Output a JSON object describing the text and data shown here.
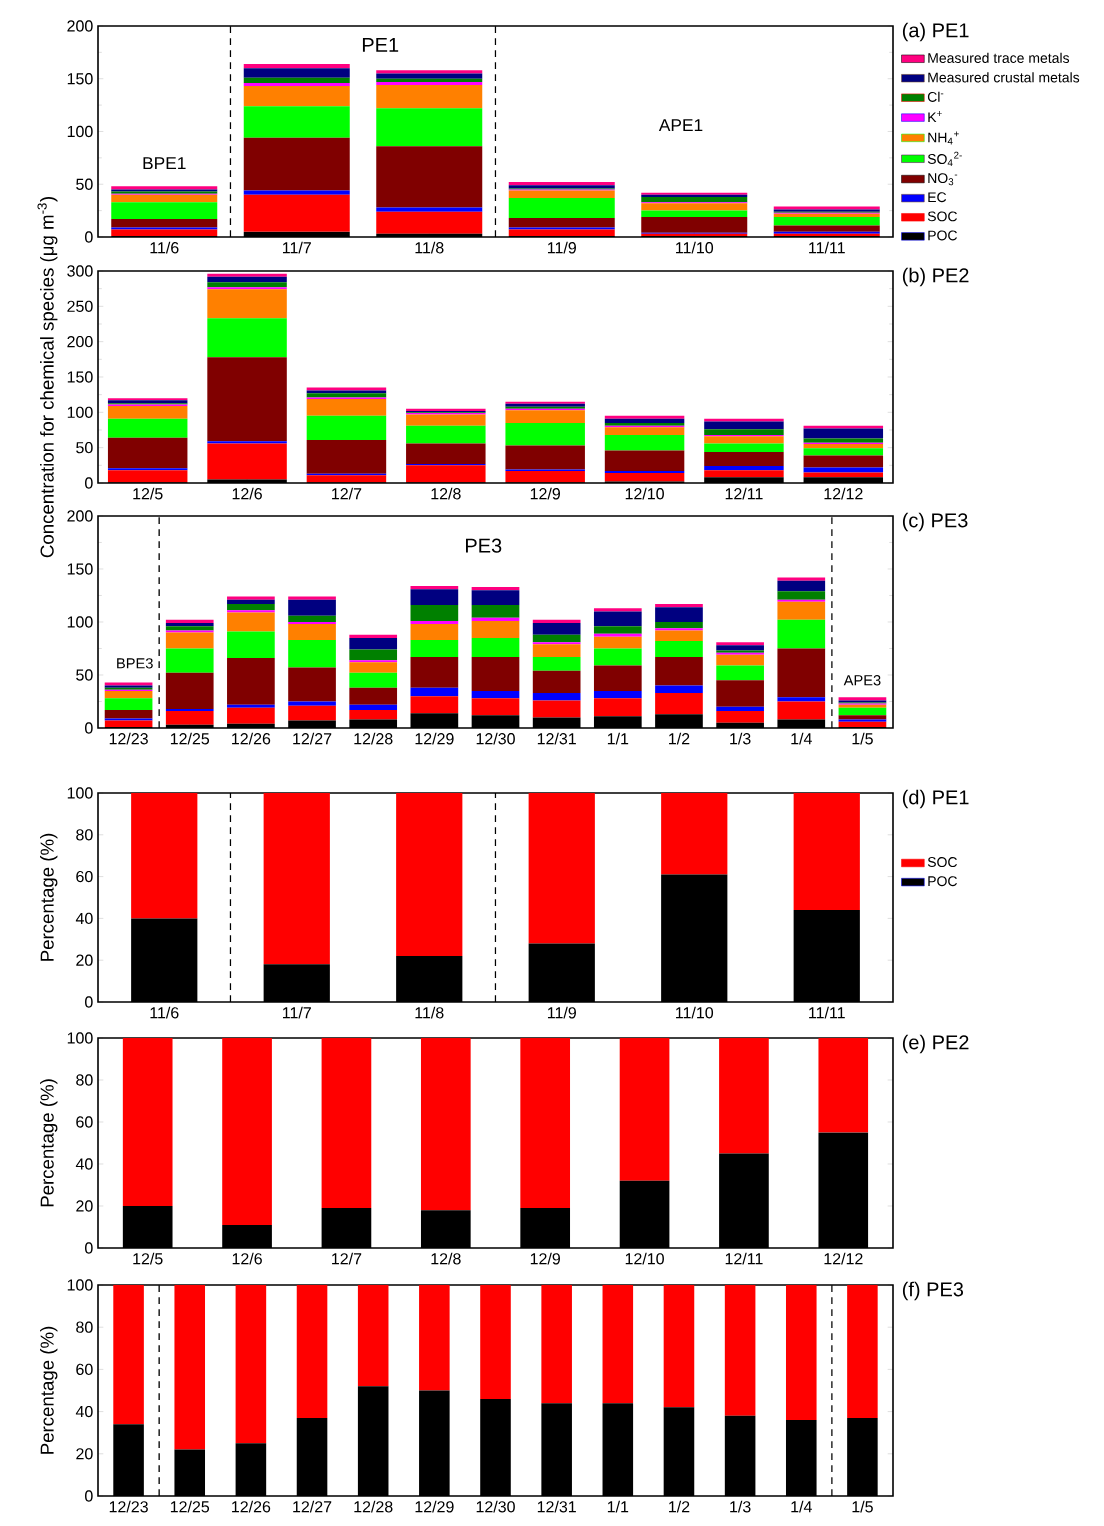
{
  "chart_data": [
    {
      "type": "bar",
      "title": "(a) PE1",
      "stacked": true,
      "legend": "right",
      "categories": [
        "11/6",
        "11/7",
        "11/8",
        "11/9",
        "11/10",
        "11/11"
      ],
      "ylim": [
        0,
        200
      ],
      "yticks": [
        0,
        50,
        100,
        150,
        200
      ],
      "annotations": [
        "BPE1",
        "PE1",
        "APE1"
      ],
      "series": [
        {
          "name": "POC",
          "color": "#000000",
          "values": [
            1,
            5,
            3,
            1,
            1,
            1
          ]
        },
        {
          "name": "SOC",
          "color": "#ff0000",
          "values": [
            6,
            35,
            21,
            6,
            2,
            2
          ]
        },
        {
          "name": "EC",
          "color": "#0000ff",
          "values": [
            2,
            4,
            4,
            2,
            1,
            2
          ]
        },
        {
          "name": "NO$_{3}$$^{-}$",
          "color": "#800000",
          "values": [
            8,
            50,
            58,
            9,
            15,
            6
          ]
        },
        {
          "name": "SO$_{4}$$^{2-}$",
          "color": "#00ff00",
          "values": [
            16,
            30,
            36,
            19,
            6,
            8
          ]
        },
        {
          "name": "NH$_{4}$$^{+}$",
          "color": "#ff8000",
          "values": [
            7,
            19,
            22,
            7,
            7,
            3
          ]
        },
        {
          "name": "K$^{+}$",
          "color": "#ff00ff",
          "values": [
            1,
            3,
            3,
            1,
            1,
            1
          ]
        },
        {
          "name": "Cl$^{-}$",
          "color": "#008000",
          "values": [
            2,
            5,
            3,
            1,
            5,
            1
          ]
        },
        {
          "name": "Measured crustal metals",
          "color": "#000080",
          "values": [
            2,
            9,
            5,
            3,
            2,
            2
          ]
        },
        {
          "name": "Measured trace metals",
          "color": "#ff0080",
          "values": [
            3,
            4,
            3,
            3,
            2,
            3
          ]
        }
      ]
    },
    {
      "type": "bar",
      "title": "(b) PE2",
      "stacked": true,
      "ylabel": "Concentration for chemical species  (μg m$^{-3}$)",
      "categories": [
        "12/5",
        "12/6",
        "12/7",
        "12/8",
        "12/9",
        "12/10",
        "12/11",
        "12/12"
      ],
      "ylim": [
        0,
        300
      ],
      "yticks": [
        0,
        50,
        100,
        150,
        200,
        250,
        300
      ],
      "series": [
        {
          "color": "#000000",
          "values": [
            1,
            5,
            1,
            1,
            1,
            2,
            8,
            8
          ]
        },
        {
          "color": "#ff0000",
          "values": [
            17,
            51,
            10,
            24,
            16,
            12,
            10,
            7
          ]
        },
        {
          "color": "#0000ff",
          "values": [
            3,
            3,
            2,
            2,
            2,
            3,
            6,
            7
          ]
        },
        {
          "color": "#800000",
          "values": [
            43,
            119,
            48,
            29,
            34,
            29,
            20,
            17
          ]
        },
        {
          "color": "#00ff00",
          "values": [
            27,
            55,
            34,
            25,
            32,
            22,
            12,
            10
          ]
        },
        {
          "color": "#ff8000",
          "values": [
            18,
            41,
            24,
            16,
            18,
            11,
            10,
            6
          ]
        },
        {
          "color": "#ff00ff",
          "values": [
            2,
            3,
            2,
            2,
            2,
            2,
            2,
            2
          ]
        },
        {
          "color": "#008000",
          "values": [
            2,
            7,
            6,
            1,
            3,
            4,
            8,
            6
          ]
        },
        {
          "color": "#000080",
          "values": [
            4,
            8,
            4,
            2,
            4,
            6,
            11,
            14
          ]
        },
        {
          "color": "#ff0080",
          "values": [
            3,
            4,
            4,
            3,
            3,
            4,
            4,
            4
          ]
        }
      ]
    },
    {
      "type": "bar",
      "title": "(c) PE3",
      "stacked": true,
      "categories": [
        "12/23",
        "12/25",
        "12/26",
        "12/27",
        "12/28",
        "12/29",
        "12/30",
        "12/31",
        "1/1",
        "1/2",
        "1/3",
        "1/4",
        "1/5"
      ],
      "ylim": [
        0,
        200
      ],
      "yticks": [
        0,
        50,
        100,
        150,
        200
      ],
      "annotations": [
        "BPE3",
        "PE3",
        "APE3"
      ],
      "series": [
        {
          "color": "#000000",
          "values": [
            1,
            3,
            4,
            7,
            8,
            14,
            12,
            10,
            11,
            13,
            5,
            8,
            1
          ]
        },
        {
          "color": "#ff0000",
          "values": [
            6,
            13,
            15,
            14,
            9,
            16,
            16,
            16,
            17,
            20,
            11,
            17,
            5
          ]
        },
        {
          "color": "#0000ff",
          "values": [
            2,
            2,
            3,
            4,
            5,
            8,
            7,
            7,
            7,
            7,
            4,
            4,
            2
          ]
        },
        {
          "color": "#800000",
          "values": [
            8,
            34,
            44,
            32,
            16,
            29,
            32,
            21,
            24,
            27,
            25,
            46,
            4
          ]
        },
        {
          "color": "#00ff00",
          "values": [
            11,
            23,
            25,
            26,
            14,
            16,
            18,
            13,
            16,
            15,
            14,
            27,
            7
          ]
        },
        {
          "color": "#ff8000",
          "values": [
            7,
            15,
            18,
            15,
            10,
            15,
            16,
            12,
            11,
            10,
            10,
            17,
            3
          ]
        },
        {
          "color": "#ff00ff",
          "values": [
            1,
            2,
            2,
            2,
            2,
            3,
            3,
            2,
            3,
            2,
            2,
            2,
            1
          ]
        },
        {
          "color": "#008000",
          "values": [
            2,
            4,
            6,
            6,
            10,
            15,
            12,
            7,
            7,
            6,
            2,
            8,
            1
          ]
        },
        {
          "color": "#000080",
          "values": [
            2,
            3,
            4,
            15,
            11,
            15,
            14,
            11,
            14,
            14,
            5,
            10,
            2
          ]
        },
        {
          "color": "#ff0080",
          "values": [
            3,
            3,
            3,
            3,
            3,
            3,
            3,
            3,
            3,
            3,
            3,
            3,
            3
          ]
        }
      ]
    },
    {
      "type": "bar",
      "title": "(d) PE1",
      "stacked": true,
      "legend": "right",
      "ylabel": "Percentage (%)",
      "categories": [
        "11/6",
        "11/7",
        "11/8",
        "11/9",
        "11/10",
        "11/11"
      ],
      "ylim": [
        0,
        100
      ],
      "yticks": [
        0,
        20,
        40,
        60,
        80,
        100
      ],
      "series": [
        {
          "name": "POC",
          "color": "#000000",
          "values": [
            40,
            18,
            22,
            28,
            61,
            44
          ]
        },
        {
          "name": "SOC",
          "color": "#ff0000",
          "values": [
            60,
            82,
            78,
            72,
            39,
            56
          ]
        }
      ]
    },
    {
      "type": "bar",
      "title": "(e) PE2",
      "stacked": true,
      "ylabel": "Percentage (%)",
      "categories": [
        "12/5",
        "12/6",
        "12/7",
        "12/8",
        "12/9",
        "12/10",
        "12/11",
        "12/12"
      ],
      "ylim": [
        0,
        100
      ],
      "yticks": [
        0,
        20,
        40,
        60,
        80,
        100
      ],
      "series": [
        {
          "color": "#000000",
          "values": [
            20,
            11,
            19,
            18,
            19,
            32,
            45,
            55
          ]
        },
        {
          "color": "#ff0000",
          "values": [
            80,
            89,
            81,
            82,
            81,
            68,
            55,
            45
          ]
        }
      ]
    },
    {
      "type": "bar",
      "title": "(f) PE3",
      "stacked": true,
      "ylabel": "Percentage (%)",
      "categories": [
        "12/23",
        "12/25",
        "12/26",
        "12/27",
        "12/28",
        "12/29",
        "12/30",
        "12/31",
        "1/1",
        "1/2",
        "1/3",
        "1/4",
        "1/5"
      ],
      "ylim": [
        0,
        100
      ],
      "yticks": [
        0,
        20,
        40,
        60,
        80,
        100
      ],
      "series": [
        {
          "color": "#000000",
          "values": [
            34,
            22,
            25,
            37,
            52,
            50,
            46,
            44,
            44,
            42,
            38,
            36,
            37
          ]
        },
        {
          "color": "#ff0000",
          "values": [
            66,
            78,
            75,
            63,
            48,
            50,
            54,
            56,
            56,
            58,
            62,
            64,
            63
          ]
        }
      ]
    }
  ]
}
